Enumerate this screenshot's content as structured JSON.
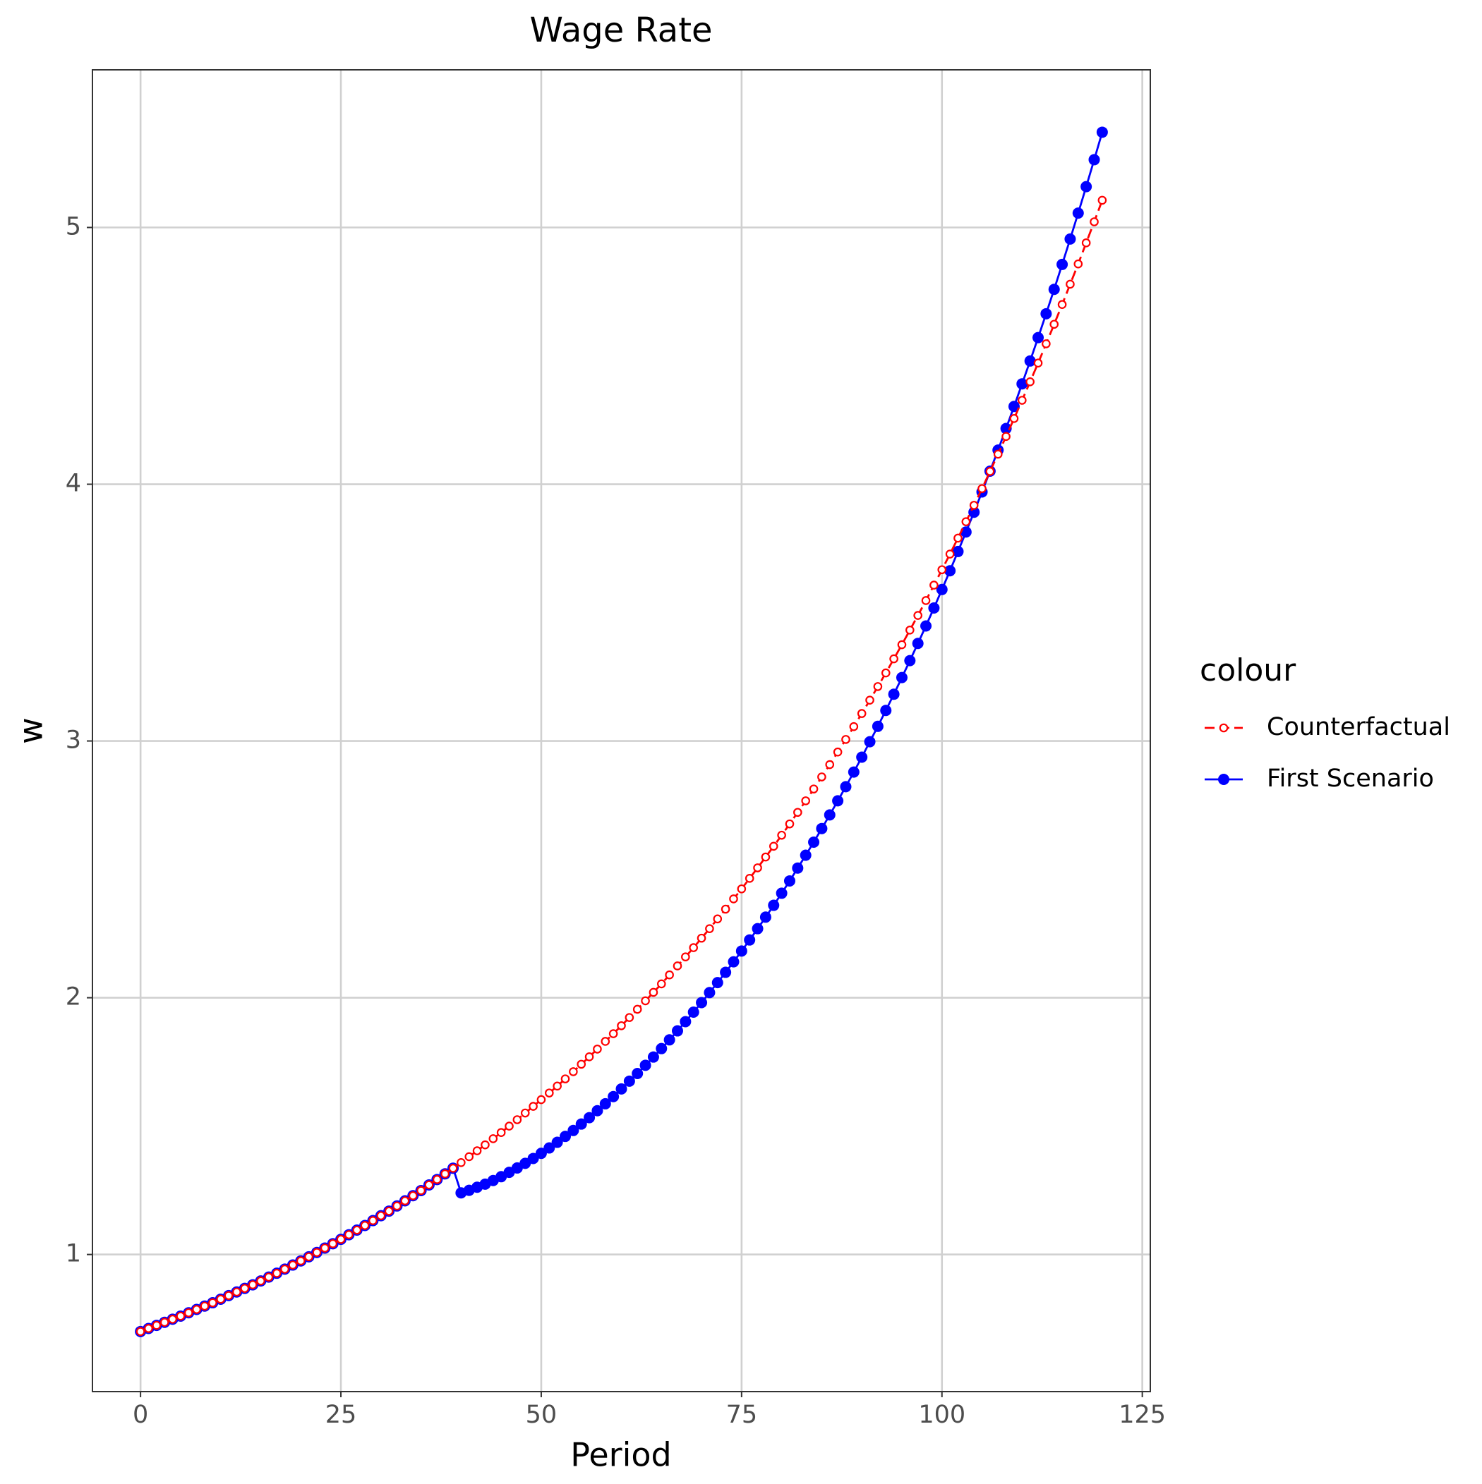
{
  "chart_data": {
    "type": "line",
    "title": "Wage Rate",
    "x_label": "Period",
    "y_label": "w",
    "legend_title": "colour",
    "legend_position": "right",
    "grid": true,
    "xlim": [
      -6,
      126
    ],
    "xticks": [
      0,
      25,
      50,
      75,
      100,
      125
    ],
    "ylim": [
      0.466,
      5.614
    ],
    "yticks": [
      1,
      2,
      3,
      4,
      5
    ],
    "x": [
      0,
      1,
      2,
      3,
      4,
      5,
      6,
      7,
      8,
      9,
      10,
      11,
      12,
      13,
      14,
      15,
      16,
      17,
      18,
      19,
      20,
      21,
      22,
      23,
      24,
      25,
      26,
      27,
      28,
      29,
      30,
      31,
      32,
      33,
      34,
      35,
      36,
      37,
      38,
      39,
      40,
      41,
      42,
      43,
      44,
      45,
      46,
      47,
      48,
      49,
      50,
      51,
      52,
      53,
      54,
      55,
      56,
      57,
      58,
      59,
      60,
      61,
      62,
      63,
      64,
      65,
      66,
      67,
      68,
      69,
      70,
      71,
      72,
      73,
      74,
      75,
      76,
      77,
      78,
      79,
      80,
      81,
      82,
      83,
      84,
      85,
      86,
      87,
      88,
      89,
      90,
      91,
      92,
      93,
      94,
      95,
      96,
      97,
      98,
      99,
      100,
      101,
      102,
      103,
      104,
      105,
      106,
      107,
      108,
      109,
      110,
      111,
      112,
      113,
      114,
      115,
      116,
      117,
      118,
      119,
      120
    ],
    "series": [
      {
        "name": "First Scenario",
        "color": "#0000ff",
        "line_style": "solid",
        "marker": "filled",
        "values": [
          0.7,
          0.712,
          0.724,
          0.736,
          0.748,
          0.76,
          0.773,
          0.786,
          0.799,
          0.812,
          0.826,
          0.84,
          0.854,
          0.868,
          0.882,
          0.897,
          0.912,
          0.927,
          0.943,
          0.959,
          0.975,
          0.991,
          1.008,
          1.025,
          1.042,
          1.059,
          1.077,
          1.095,
          1.113,
          1.132,
          1.151,
          1.169,
          1.189,
          1.209,
          1.229,
          1.249,
          1.271,
          1.292,
          1.314,
          1.336,
          1.24,
          1.25,
          1.262,
          1.274,
          1.288,
          1.303,
          1.32,
          1.337,
          1.355,
          1.374,
          1.394,
          1.415,
          1.437,
          1.46,
          1.483,
          1.508,
          1.533,
          1.56,
          1.587,
          1.615,
          1.645,
          1.675,
          1.705,
          1.737,
          1.769,
          1.802,
          1.836,
          1.871,
          1.907,
          1.944,
          1.981,
          2.02,
          2.059,
          2.099,
          2.14,
          2.182,
          2.225,
          2.269,
          2.314,
          2.36,
          2.407,
          2.455,
          2.505,
          2.555,
          2.606,
          2.659,
          2.712,
          2.767,
          2.822,
          2.879,
          2.937,
          2.997,
          3.057,
          3.119,
          3.182,
          3.247,
          3.313,
          3.38,
          3.448,
          3.518,
          3.59,
          3.663,
          3.738,
          3.814,
          3.891,
          3.97,
          4.051,
          4.133,
          4.217,
          4.303,
          4.391,
          4.48,
          4.571,
          4.664,
          4.759,
          4.856,
          4.955,
          5.056,
          5.159,
          5.264,
          5.371
        ]
      },
      {
        "name": "Counterfactual",
        "color": "#ff0000",
        "line_style": "dashed",
        "marker": "open",
        "values": [
          0.7,
          0.712,
          0.724,
          0.736,
          0.748,
          0.76,
          0.773,
          0.786,
          0.799,
          0.812,
          0.826,
          0.84,
          0.854,
          0.868,
          0.882,
          0.897,
          0.912,
          0.927,
          0.943,
          0.959,
          0.975,
          0.991,
          1.008,
          1.025,
          1.042,
          1.059,
          1.077,
          1.095,
          1.113,
          1.132,
          1.151,
          1.169,
          1.189,
          1.209,
          1.229,
          1.249,
          1.271,
          1.292,
          1.314,
          1.336,
          1.358,
          1.381,
          1.404,
          1.427,
          1.451,
          1.475,
          1.5,
          1.525,
          1.551,
          1.577,
          1.603,
          1.629,
          1.656,
          1.684,
          1.712,
          1.741,
          1.77,
          1.8,
          1.83,
          1.86,
          1.891,
          1.923,
          1.955,
          1.988,
          2.021,
          2.054,
          2.089,
          2.124,
          2.159,
          2.195,
          2.232,
          2.269,
          2.307,
          2.345,
          2.385,
          2.424,
          2.465,
          2.506,
          2.548,
          2.59,
          2.633,
          2.677,
          2.722,
          2.767,
          2.813,
          2.86,
          2.908,
          2.957,
          3.006,
          3.056,
          3.107,
          3.159,
          3.212,
          3.265,
          3.32,
          3.375,
          3.432,
          3.489,
          3.547,
          3.607,
          3.667,
          3.728,
          3.79,
          3.854,
          3.918,
          3.983,
          4.05,
          4.117,
          4.186,
          4.256,
          4.327,
          4.399,
          4.472,
          4.547,
          4.623,
          4.7,
          4.779,
          4.858,
          4.94,
          5.022,
          5.106
        ]
      }
    ]
  }
}
